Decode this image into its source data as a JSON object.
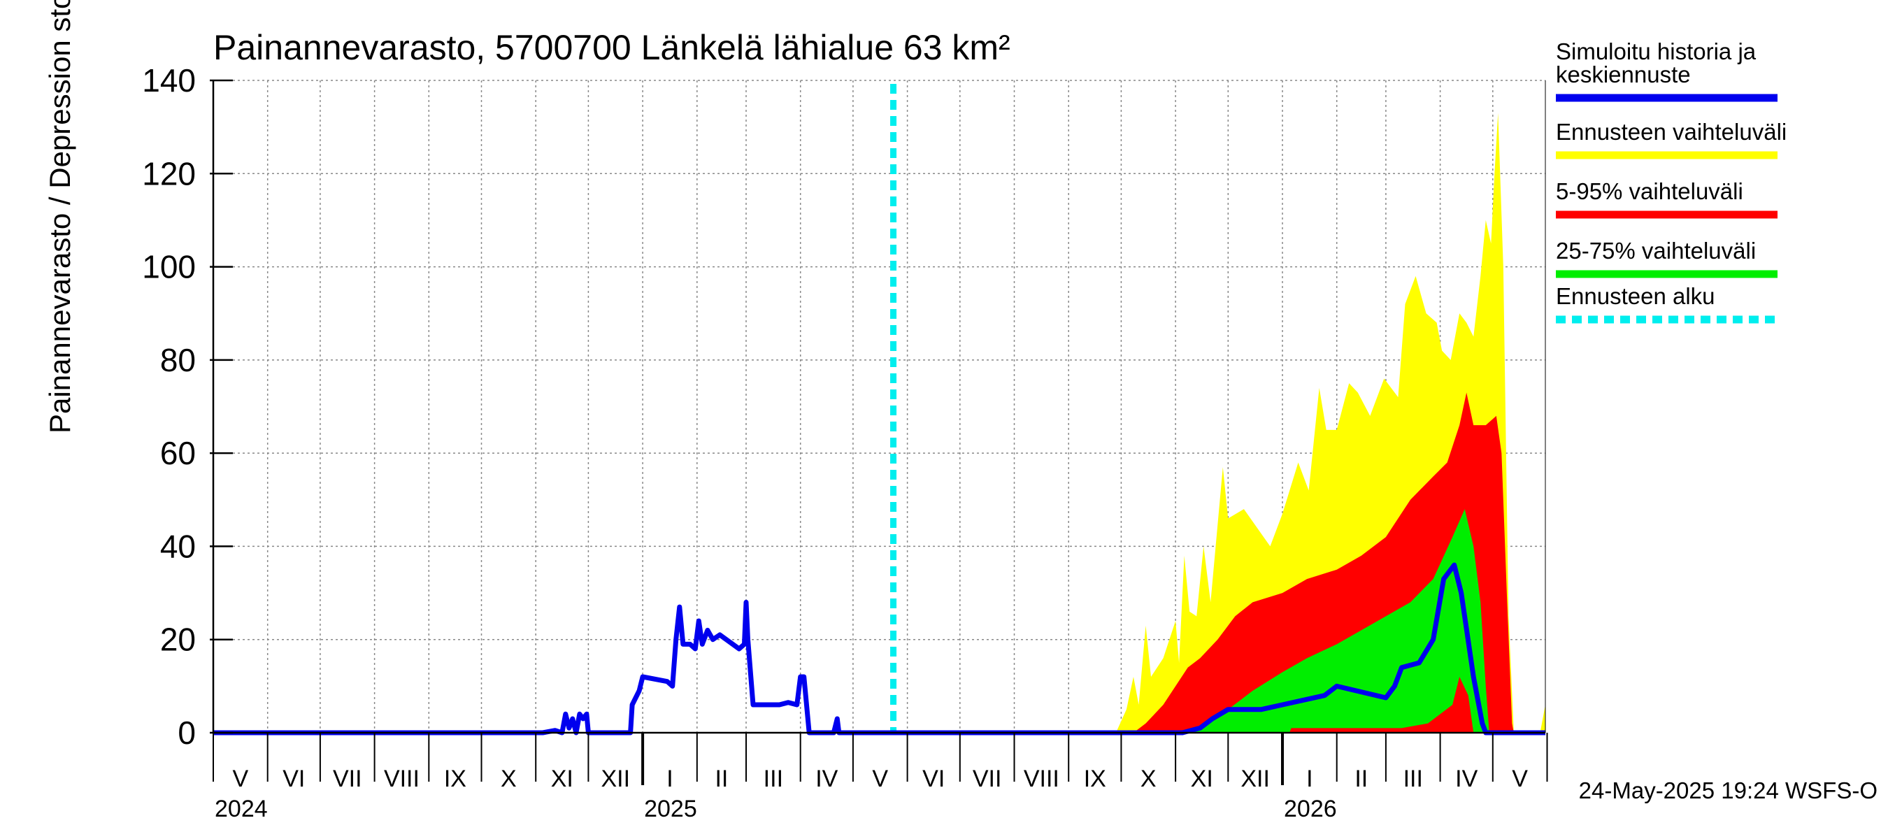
{
  "chart_data": {
    "type": "area",
    "title": "Painannevarasto, 5700700 Länkelä lähialue 63 km²",
    "ylabel": "Painannevarasto / Depression storage    mm",
    "ylim": [
      0,
      140
    ],
    "yticks": [
      "0",
      "20",
      "40",
      "60",
      "80",
      "100",
      "120",
      "140"
    ],
    "month_labels": [
      "V",
      "VI",
      "VII",
      "VIII",
      "IX",
      "X",
      "XI",
      "XII",
      "I",
      "II",
      "III",
      "IV",
      "V",
      "VI",
      "VII",
      "VIII",
      "IX",
      "X",
      "XI",
      "XII",
      "I",
      "II",
      "III",
      "IV",
      "V"
    ],
    "year_labels": [
      {
        "label": "2024",
        "date": "2024-05-01"
      },
      {
        "label": "2025",
        "date": "2025-01-01"
      },
      {
        "label": "2026",
        "date": "2026-01-01"
      }
    ],
    "x_start": "2024-05-01",
    "x_end": "2026-05-31",
    "forecast_start": "2025-05-24",
    "grid": true,
    "legend_position": "right",
    "legend": [
      {
        "label": "Simuloitu historia ja keskiennuste",
        "color": "#0000ee",
        "style": "solid"
      },
      {
        "label": "Ennusteen vaihteluväli",
        "color": "#ffff00",
        "style": "solid"
      },
      {
        "label": "5-95% vaihteluväli",
        "color": "#ff0000",
        "style": "solid"
      },
      {
        "label": "25-75% vaihteluväli",
        "color": "#00ee00",
        "style": "solid"
      },
      {
        "label": "Ennusteen alku",
        "color": "#00eeee",
        "style": "dashed"
      }
    ],
    "series": [
      {
        "name": "Simuloitu historia ja keskiennuste",
        "color": "#0000ee",
        "points": [
          [
            "2024-05-01",
            0
          ],
          [
            "2024-11-05",
            0
          ],
          [
            "2024-11-12",
            0.5
          ],
          [
            "2024-11-16",
            0
          ],
          [
            "2024-11-18",
            4
          ],
          [
            "2024-11-20",
            1
          ],
          [
            "2024-11-22",
            3
          ],
          [
            "2024-11-24",
            0
          ],
          [
            "2024-11-26",
            4
          ],
          [
            "2024-11-28",
            3
          ],
          [
            "2024-11-30",
            4
          ],
          [
            "2024-12-01",
            0
          ],
          [
            "2024-12-25",
            0
          ],
          [
            "2024-12-26",
            6
          ],
          [
            "2024-12-30",
            9
          ],
          [
            "2025-01-01",
            12
          ],
          [
            "2025-01-15",
            11
          ],
          [
            "2025-01-18",
            10
          ],
          [
            "2025-01-20",
            20
          ],
          [
            "2025-01-22",
            27
          ],
          [
            "2025-01-24",
            19
          ],
          [
            "2025-01-28",
            19
          ],
          [
            "2025-01-31",
            18
          ],
          [
            "2025-02-02",
            24
          ],
          [
            "2025-02-04",
            19
          ],
          [
            "2025-02-07",
            22
          ],
          [
            "2025-02-10",
            20
          ],
          [
            "2025-02-14",
            21
          ],
          [
            "2025-02-25",
            18
          ],
          [
            "2025-02-28",
            19
          ],
          [
            "2025-03-01",
            28
          ],
          [
            "2025-03-02",
            20
          ],
          [
            "2025-03-05",
            6
          ],
          [
            "2025-03-20",
            6
          ],
          [
            "2025-03-25",
            6.5
          ],
          [
            "2025-03-30",
            6
          ],
          [
            "2025-04-01",
            12
          ],
          [
            "2025-04-03",
            12
          ],
          [
            "2025-04-06",
            0
          ],
          [
            "2025-04-20",
            0
          ],
          [
            "2025-04-22",
            3
          ],
          [
            "2025-04-23",
            0
          ],
          [
            "2025-11-05",
            0
          ],
          [
            "2025-11-15",
            1
          ],
          [
            "2025-11-22",
            3
          ],
          [
            "2025-12-01",
            5
          ],
          [
            "2025-12-20",
            5
          ],
          [
            "2026-01-01",
            6
          ],
          [
            "2026-01-25",
            8
          ],
          [
            "2026-02-01",
            10
          ],
          [
            "2026-03-01",
            7.5
          ],
          [
            "2026-03-06",
            10
          ],
          [
            "2026-03-10",
            14
          ],
          [
            "2026-03-20",
            15
          ],
          [
            "2026-03-28",
            20
          ],
          [
            "2026-04-03",
            33
          ],
          [
            "2026-04-09",
            36
          ],
          [
            "2026-04-13",
            30
          ],
          [
            "2026-04-20",
            12
          ],
          [
            "2026-04-25",
            2
          ],
          [
            "2026-04-27",
            0
          ],
          [
            "2026-05-31",
            0
          ]
        ]
      },
      {
        "name": "Ennusteen vaihteluväli",
        "color": "#ffff00",
        "upper": [
          [
            "2025-05-24",
            0
          ],
          [
            "2025-09-28",
            0
          ],
          [
            "2025-10-04",
            5
          ],
          [
            "2025-10-08",
            12
          ],
          [
            "2025-10-11",
            6
          ],
          [
            "2025-10-15",
            23
          ],
          [
            "2025-10-18",
            12
          ],
          [
            "2025-10-25",
            16
          ],
          [
            "2025-11-01",
            24
          ],
          [
            "2025-11-03",
            15
          ],
          [
            "2025-11-06",
            38
          ],
          [
            "2025-11-09",
            26
          ],
          [
            "2025-11-13",
            25
          ],
          [
            "2025-11-17",
            40
          ],
          [
            "2025-11-21",
            28
          ],
          [
            "2025-11-28",
            57
          ],
          [
            "2025-12-01",
            46
          ],
          [
            "2025-12-10",
            48
          ],
          [
            "2025-12-25",
            40
          ],
          [
            "2026-01-01",
            47
          ],
          [
            "2026-01-10",
            58
          ],
          [
            "2026-01-16",
            52
          ],
          [
            "2026-01-22",
            74
          ],
          [
            "2026-01-26",
            65
          ],
          [
            "2026-02-01",
            65
          ],
          [
            "2026-02-08",
            75
          ],
          [
            "2026-02-13",
            73
          ],
          [
            "2026-02-20",
            68
          ],
          [
            "2026-02-28",
            76
          ],
          [
            "2026-03-08",
            72
          ],
          [
            "2026-03-12",
            92
          ],
          [
            "2026-03-18",
            98
          ],
          [
            "2026-03-24",
            90
          ],
          [
            "2026-03-30",
            88
          ],
          [
            "2026-04-02",
            82
          ],
          [
            "2026-04-07",
            80
          ],
          [
            "2026-04-12",
            90
          ],
          [
            "2026-04-16",
            88
          ],
          [
            "2026-04-20",
            85
          ],
          [
            "2026-04-24",
            98
          ],
          [
            "2026-04-27",
            110
          ],
          [
            "2026-04-30",
            105
          ],
          [
            "2026-05-02",
            120
          ],
          [
            "2026-05-04",
            133
          ],
          [
            "2026-05-07",
            100
          ],
          [
            "2026-05-10",
            25
          ],
          [
            "2026-05-13",
            0
          ],
          [
            "2026-05-28",
            0
          ],
          [
            "2026-05-31",
            6
          ]
        ]
      },
      {
        "name": "5-95% vaihteluväli",
        "color": "#ff0000",
        "upper": [
          [
            "2025-05-24",
            0
          ],
          [
            "2025-10-08",
            0
          ],
          [
            "2025-10-15",
            2
          ],
          [
            "2025-10-25",
            6
          ],
          [
            "2025-11-01",
            10
          ],
          [
            "2025-11-08",
            14
          ],
          [
            "2025-11-15",
            16
          ],
          [
            "2025-11-25",
            20
          ],
          [
            "2025-12-05",
            25
          ],
          [
            "2025-12-15",
            28
          ],
          [
            "2026-01-01",
            30
          ],
          [
            "2026-01-15",
            33
          ],
          [
            "2026-02-01",
            35
          ],
          [
            "2026-02-15",
            38
          ],
          [
            "2026-03-01",
            42
          ],
          [
            "2026-03-15",
            50
          ],
          [
            "2026-03-28",
            55
          ],
          [
            "2026-04-05",
            58
          ],
          [
            "2026-04-12",
            66
          ],
          [
            "2026-04-16",
            73
          ],
          [
            "2026-04-20",
            66
          ],
          [
            "2026-04-27",
            66
          ],
          [
            "2026-05-03",
            68
          ],
          [
            "2026-05-06",
            60
          ],
          [
            "2026-05-09",
            30
          ],
          [
            "2026-05-12",
            2
          ],
          [
            "2026-05-13",
            0
          ],
          [
            "2026-05-31",
            0
          ]
        ]
      },
      {
        "name": "25-75% vaihteluväli",
        "color": "#00ee00",
        "upper": [
          [
            "2025-05-24",
            0
          ],
          [
            "2025-11-10",
            0
          ],
          [
            "2025-11-18",
            2
          ],
          [
            "2025-12-01",
            5
          ],
          [
            "2025-12-15",
            9
          ],
          [
            "2026-01-01",
            13
          ],
          [
            "2026-01-15",
            16
          ],
          [
            "2026-02-01",
            19
          ],
          [
            "2026-02-15",
            22
          ],
          [
            "2026-03-01",
            25
          ],
          [
            "2026-03-15",
            28
          ],
          [
            "2026-03-28",
            33
          ],
          [
            "2026-04-08",
            42
          ],
          [
            "2026-04-15",
            48
          ],
          [
            "2026-04-20",
            40
          ],
          [
            "2026-04-24",
            28
          ],
          [
            "2026-04-27",
            10
          ],
          [
            "2026-04-29",
            0
          ],
          [
            "2026-05-31",
            0
          ]
        ],
        "lower": [
          [
            "2026-01-05",
            0
          ],
          [
            "2026-01-06",
            1
          ],
          [
            "2026-03-10",
            1
          ],
          [
            "2026-03-25",
            2
          ],
          [
            "2026-04-08",
            6
          ],
          [
            "2026-04-12",
            12
          ],
          [
            "2026-04-17",
            8
          ],
          [
            "2026-04-20",
            0
          ]
        ]
      }
    ]
  },
  "footer_timestamp": "24-May-2025 19:24 WSFS-O"
}
